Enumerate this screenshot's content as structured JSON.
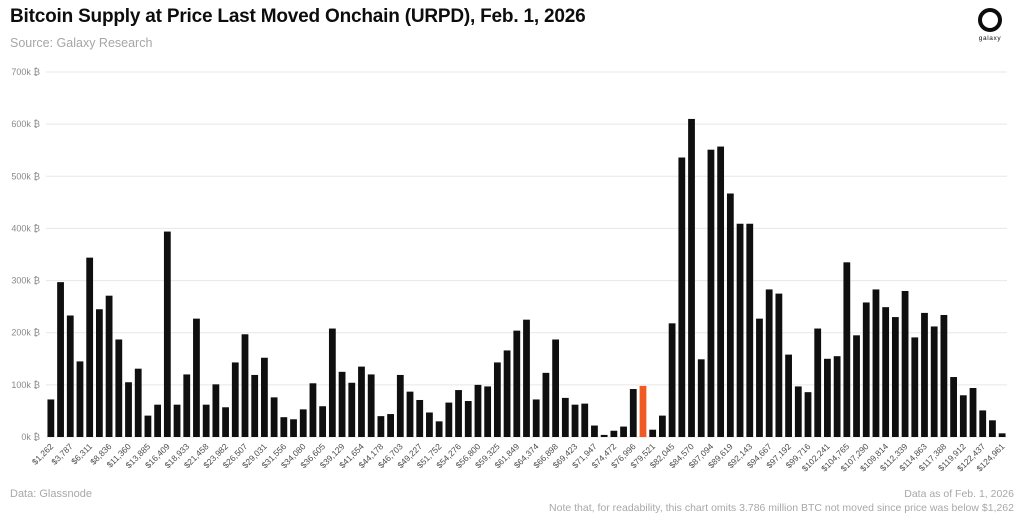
{
  "header": {
    "title": "Bitcoin Supply at Price Last Moved Onchain (URPD), Feb. 1, 2026",
    "subtitle": "Source: Galaxy Research",
    "logo_text": "galaxy"
  },
  "footer": {
    "left": "Data: Glassnode",
    "right_line1": "Data as of Feb. 1, 2026",
    "right_line2": "Note that, for readability, this chart omits 3.786 million BTC not moved since price was below $1,262"
  },
  "chart_data": {
    "type": "bar",
    "title": "Bitcoin Supply at Price Last Moved Onchain (URPD), Feb. 1, 2026",
    "source": "Source: Galaxy Research",
    "xlabel": "",
    "ylabel": "",
    "y_unit": "k ₿ (thousand BTC)",
    "ylim_k_btc": [
      0,
      700
    ],
    "y_tick_labels": [
      "0k ₿",
      "100k ₿",
      "200k ₿",
      "300k ₿",
      "400k ₿",
      "500k ₿",
      "600k ₿",
      "700k ₿"
    ],
    "grid": true,
    "legend": "none",
    "bar_color": "#0f0f0f",
    "highlight_color": "#f15a22",
    "highlight_index": 61,
    "x_label_every_nth_bar": 2,
    "x_tick_labels": [
      "$1,262",
      "$3,787",
      "$6,311",
      "$8,836",
      "$11,360",
      "$13,885",
      "$16,409",
      "$18,933",
      "$21,458",
      "$23,982",
      "$26,507",
      "$29,031",
      "$31,556",
      "$34,080",
      "$36,605",
      "$39,129",
      "$41,654",
      "$44,178",
      "$46,703",
      "$49,227",
      "$51,752",
      "$54,276",
      "$56,800",
      "$59,325",
      "$61,849",
      "$64,374",
      "$66,898",
      "$69,423",
      "$71,947",
      "$74,472",
      "$76,996",
      "$79,521",
      "$82,045",
      "$84,570",
      "$87,094",
      "$89,619",
      "$92,143",
      "$94,667",
      "$97,192",
      "$99,716",
      "$102,241",
      "$104,765",
      "$107,290",
      "$109,814",
      "$112,339",
      "$114,863",
      "$117,388",
      "$119,912",
      "$122,437",
      "$124,961"
    ],
    "values_k_btc": [
      72,
      297,
      233,
      145,
      344,
      245,
      271,
      187,
      105,
      131,
      41,
      62,
      394,
      62,
      120,
      227,
      62,
      101,
      57,
      143,
      197,
      119,
      152,
      76,
      38,
      34,
      53,
      103,
      59,
      208,
      125,
      104,
      135,
      120,
      40,
      44,
      119,
      87,
      71,
      47,
      30,
      66,
      90,
      69,
      100,
      97,
      143,
      166,
      204,
      225,
      72,
      123,
      187,
      75,
      62,
      64,
      22,
      4,
      12,
      20,
      92,
      98,
      14,
      41,
      218,
      536,
      610,
      149,
      551,
      557,
      467,
      409,
      409,
      227,
      283,
      275,
      158,
      97,
      86,
      208,
      150,
      155,
      335,
      195,
      258,
      283,
      249,
      230,
      280,
      191,
      238,
      212,
      234,
      115,
      80,
      94,
      51,
      32,
      7
    ]
  }
}
